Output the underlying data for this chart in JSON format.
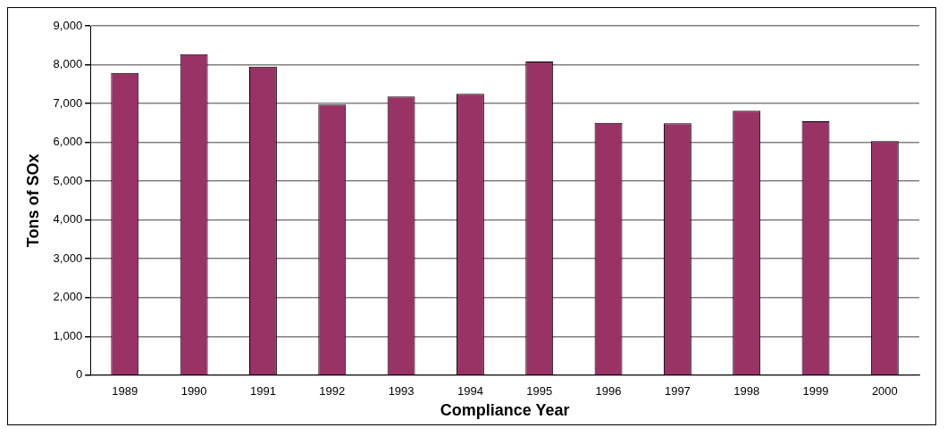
{
  "chart_data": {
    "type": "bar",
    "xlabel": "Compliance Year",
    "ylabel": "Tons of SOx",
    "categories": [
      "1989",
      "1990",
      "1991",
      "1992",
      "1993",
      "1994",
      "1995",
      "1996",
      "1997",
      "1998",
      "1999",
      "2000"
    ],
    "values": [
      7790,
      8270,
      7950,
      6970,
      7180,
      7250,
      8080,
      6500,
      6490,
      6810,
      6540,
      6030
    ],
    "color": "#993366",
    "ylim": [
      0,
      9000
    ],
    "yticks": [
      {
        "value": 0,
        "label": "0"
      },
      {
        "value": 1000,
        "label": "1,000"
      },
      {
        "value": 2000,
        "label": "2,000"
      },
      {
        "value": 3000,
        "label": "3,000"
      },
      {
        "value": 4000,
        "label": "4,000"
      },
      {
        "value": 5000,
        "label": "5,000"
      },
      {
        "value": 6000,
        "label": "6,000"
      },
      {
        "value": 7000,
        "label": "7,000"
      },
      {
        "value": 8000,
        "label": "8,000"
      },
      {
        "value": 9000,
        "label": "9,000"
      }
    ],
    "grid": "y",
    "legend": false
  }
}
